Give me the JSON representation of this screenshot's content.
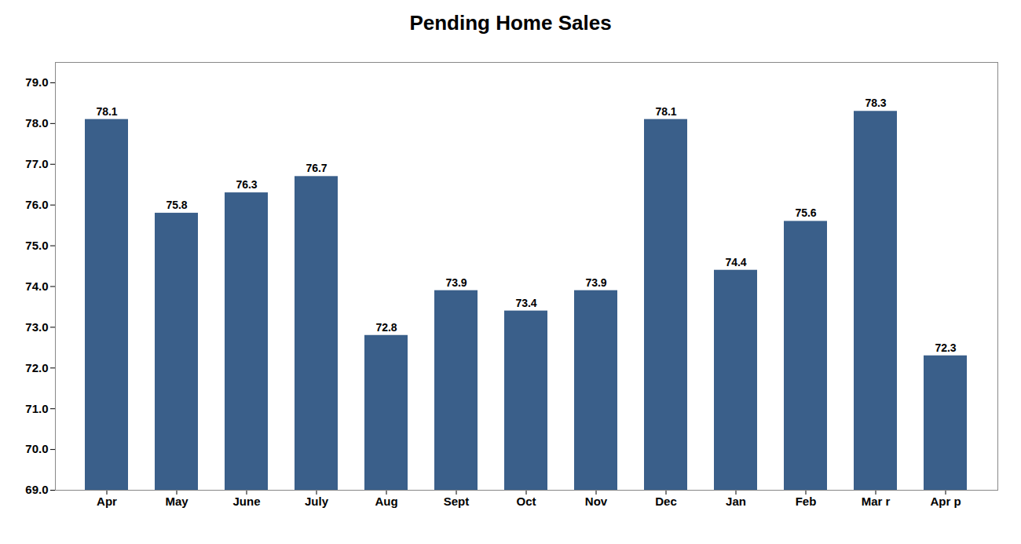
{
  "chart_data": {
    "type": "bar",
    "title": "Pending Home Sales",
    "categories": [
      "Apr",
      "May",
      "June",
      "July",
      "Aug",
      "Sept",
      "Oct",
      "Nov",
      "Dec",
      "Jan",
      "Feb",
      "Mar r",
      "Apr p"
    ],
    "values": [
      78.1,
      75.8,
      76.3,
      76.7,
      72.8,
      73.9,
      73.4,
      73.9,
      78.1,
      74.4,
      75.6,
      78.3,
      72.3
    ],
    "color": "#3A5F8A",
    "ylim": [
      69.0,
      79.5
    ],
    "yticks": [
      {
        "value": 69.0,
        "label": "69.0"
      },
      {
        "value": 70.0,
        "label": "70.0"
      },
      {
        "value": 71.0,
        "label": "71.0"
      },
      {
        "value": 72.0,
        "label": "72.0"
      },
      {
        "value": 73.0,
        "label": "73.0"
      },
      {
        "value": 74.0,
        "label": "74.0"
      },
      {
        "value": 75.0,
        "label": "75.0"
      },
      {
        "value": 76.0,
        "label": "76.0"
      },
      {
        "value": 77.0,
        "label": "77.0"
      },
      {
        "value": 78.0,
        "label": "78.0"
      },
      {
        "value": 79.0,
        "label": "79.0"
      }
    ],
    "grid": false,
    "data_labels": true
  }
}
